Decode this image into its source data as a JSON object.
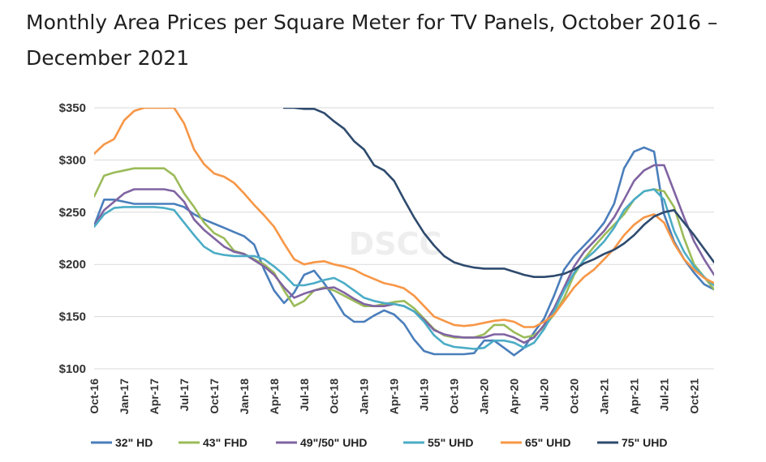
{
  "title": "Monthly Area Prices per Square Meter for TV Panels, October 2016 – December 2021",
  "watermark": "DSCC",
  "chart_data": {
    "type": "line",
    "x_start": "2016-10",
    "x_end": "2021-12",
    "xticks": [
      "Oct-16",
      "Jan-17",
      "Apr-17",
      "Jul-17",
      "Oct-17",
      "Jan-18",
      "Apr-18",
      "Jul-18",
      "Oct-18",
      "Jan-19",
      "Apr-19",
      "Jul-19",
      "Oct-19",
      "Jan-20",
      "Apr-20",
      "Jul-20",
      "Oct-20",
      "Jan-21",
      "Apr-21",
      "Jul-21",
      "Oct-21"
    ],
    "ylim": [
      100,
      350
    ],
    "yticks": [
      "$100",
      "$150",
      "$200",
      "$250",
      "$300",
      "$350"
    ],
    "ytick_values": [
      100,
      150,
      200,
      250,
      300,
      350
    ],
    "grid": true,
    "legend_position": "bottom",
    "series": [
      {
        "name": "32\" HD",
        "color": "#4a7ebb",
        "values": [
          237,
          262,
          262,
          260,
          258,
          258,
          258,
          258,
          258,
          255,
          248,
          243,
          239,
          235,
          231,
          227,
          219,
          195,
          175,
          163,
          173,
          190,
          194,
          182,
          168,
          152,
          145,
          145,
          151,
          156,
          152,
          143,
          128,
          117,
          114,
          114,
          114,
          114,
          115,
          127,
          127,
          120,
          113,
          120,
          135,
          148,
          170,
          195,
          208,
          218,
          228,
          240,
          258,
          292,
          308,
          312,
          308,
          248,
          222,
          205,
          192,
          181,
          176
        ]
      },
      {
        "name": "43\" FHD",
        "color": "#9bbb59",
        "values": [
          265,
          285,
          288,
          290,
          292,
          292,
          292,
          292,
          285,
          268,
          255,
          240,
          230,
          225,
          213,
          210,
          205,
          200,
          192,
          175,
          160,
          165,
          175,
          178,
          175,
          170,
          165,
          160,
          160,
          162,
          164,
          165,
          158,
          148,
          138,
          132,
          130,
          130,
          130,
          133,
          142,
          142,
          135,
          130,
          132,
          140,
          152,
          168,
          190,
          205,
          217,
          228,
          238,
          248,
          262,
          270,
          272,
          270,
          255,
          225,
          200,
          188,
          176
        ]
      },
      {
        "name": "49\"/50\" UHD",
        "color": "#8064a2",
        "values": [
          237,
          252,
          260,
          268,
          272,
          272,
          272,
          272,
          270,
          260,
          243,
          233,
          225,
          217,
          212,
          210,
          204,
          198,
          190,
          178,
          168,
          172,
          175,
          177,
          178,
          173,
          167,
          162,
          160,
          160,
          162,
          160,
          155,
          147,
          137,
          133,
          131,
          130,
          130,
          130,
          133,
          133,
          130,
          125,
          130,
          142,
          158,
          178,
          198,
          212,
          222,
          232,
          245,
          262,
          280,
          290,
          295,
          295,
          270,
          245,
          222,
          205,
          190
        ]
      },
      {
        "name": "55\" UHD",
        "color": "#4bacc6",
        "values": [
          236,
          248,
          254,
          255,
          255,
          255,
          255,
          254,
          252,
          240,
          228,
          217,
          211,
          209,
          208,
          208,
          208,
          205,
          198,
          190,
          180,
          180,
          182,
          185,
          187,
          182,
          175,
          168,
          165,
          163,
          162,
          160,
          155,
          145,
          132,
          124,
          121,
          120,
          119,
          120,
          127,
          127,
          125,
          120,
          125,
          138,
          155,
          175,
          192,
          204,
          212,
          222,
          235,
          252,
          262,
          270,
          272,
          262,
          232,
          212,
          198,
          188,
          180
        ]
      },
      {
        "name": "65\" UHD",
        "color": "#f79646",
        "values": [
          306,
          315,
          320,
          338,
          347,
          352,
          352,
          352,
          350,
          335,
          310,
          296,
          287,
          284,
          278,
          268,
          257,
          247,
          236,
          220,
          205,
          200,
          202,
          203,
          200,
          198,
          195,
          190,
          186,
          182,
          180,
          177,
          170,
          160,
          150,
          146,
          142,
          141,
          142,
          144,
          146,
          147,
          145,
          140,
          140,
          145,
          152,
          165,
          178,
          188,
          195,
          205,
          215,
          228,
          238,
          245,
          248,
          240,
          220,
          205,
          195,
          187,
          182
        ]
      },
      {
        "name": "75\" UHD",
        "color": "#2e4a6e",
        "values": [
          null,
          null,
          null,
          null,
          null,
          null,
          null,
          null,
          null,
          null,
          null,
          null,
          null,
          null,
          null,
          null,
          null,
          null,
          null,
          355,
          350,
          349,
          349,
          345,
          337,
          330,
          318,
          310,
          295,
          290,
          280,
          262,
          245,
          230,
          218,
          208,
          202,
          199,
          197,
          196,
          196,
          196,
          193,
          190,
          188,
          188,
          189,
          191,
          195,
          201,
          205,
          210,
          214,
          220,
          228,
          238,
          246,
          250,
          252,
          240,
          228,
          215,
          202
        ]
      }
    ]
  }
}
